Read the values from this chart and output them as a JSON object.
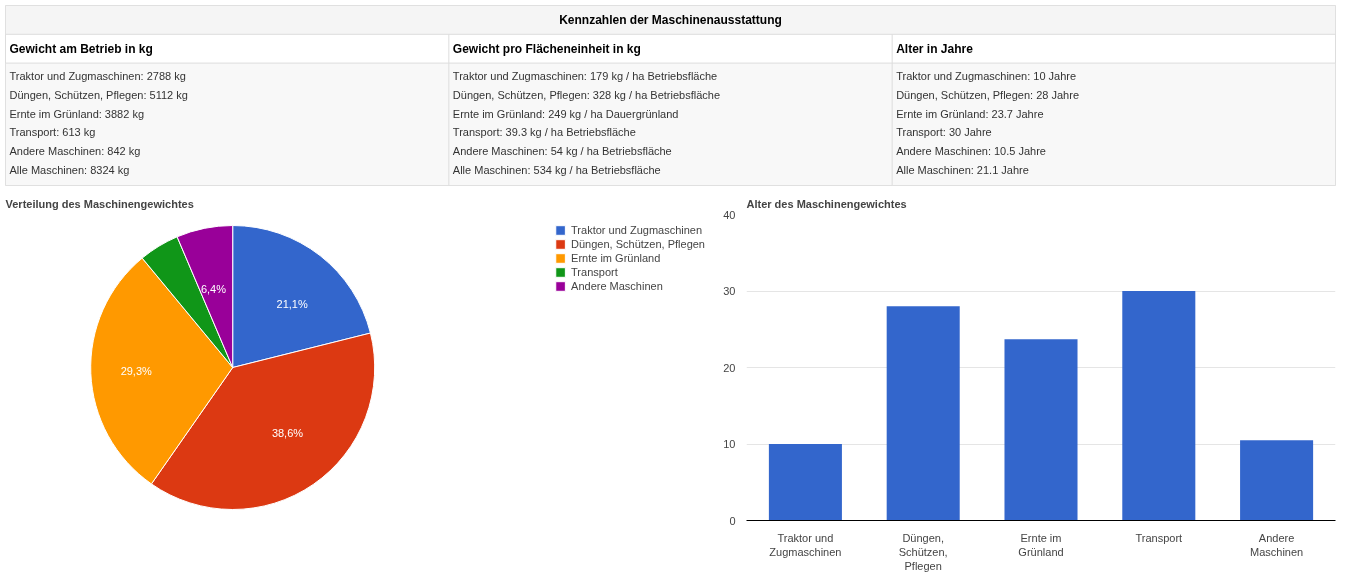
{
  "chart_data": [
    {
      "type": "other",
      "title": "Kennzahlen der Maschinenausstattung",
      "categories": [
        "Gewicht am Betrieb in kg",
        "Gewicht pro Flächeneinheit in kg",
        "Alter in Jahre"
      ],
      "annotations": [
        "Traktor und Zugmaschinen: 2788 kg",
        "Düngen, Schützen, Pflegen: 5112 kg",
        "Ernte im Grünland: 3882 kg",
        "Transport: 613 kg",
        "Andere Maschinen: 842 kg",
        "Alle Maschinen: 8324 kg",
        "Traktor und Zugmaschinen: 179 kg / ha Betriebsfläche",
        "Düngen, Schützen, Pflegen: 328 kg / ha Betriebsfläche",
        "Ernte im Grünland: 249 kg / ha Dauergrünland",
        "Transport: 39.3 kg / ha Betriebsfläche",
        "Andere Maschinen: 54 kg / ha Betriebsfläche",
        "Alle Maschinen: 534 kg / ha Betriebsfläche",
        "Traktor und Zugmaschinen: 10 Jahre",
        "Düngen, Schützen, Pflegen: 28 Jahre",
        "Ernte im Grünland: 23.7 Jahre",
        "Transport: 30 Jahre",
        "Andere Maschinen: 10.5 Jahre",
        "Alle Maschinen: 21.1 Jahre"
      ]
    },
    {
      "type": "pie",
      "title": "Verteilung des Maschinengewichtes",
      "categories": [
        "Traktor und Zugmaschinen",
        "Düngen, Schützen, Pflegen",
        "Ernte im Grünland",
        "Transport",
        "Andere Maschinen"
      ],
      "values": [
        21.1,
        38.6,
        29.3,
        4.6,
        6.4
      ],
      "colors": [
        "#3366cc",
        "#dc3912",
        "#ff9900",
        "#109618",
        "#990099"
      ],
      "value_labels": [
        "21,1%",
        "38,6%",
        "29,3%",
        null,
        "6,4%"
      ],
      "legend": "right"
    },
    {
      "type": "bar",
      "title": "Alter des Maschinengewichtes",
      "categories": [
        "Traktor und Zugmaschinen",
        "Düngen, Schützen, Pflegen",
        "Ernte im Grünland",
        "Transport",
        "Andere Maschinen"
      ],
      "values": [
        10,
        28,
        23.7,
        30,
        10.5
      ],
      "color": "#3366cc",
      "ylim": [
        0,
        40
      ],
      "yticks": [
        0,
        10,
        20,
        30,
        40
      ],
      "grid": "y"
    }
  ]
}
